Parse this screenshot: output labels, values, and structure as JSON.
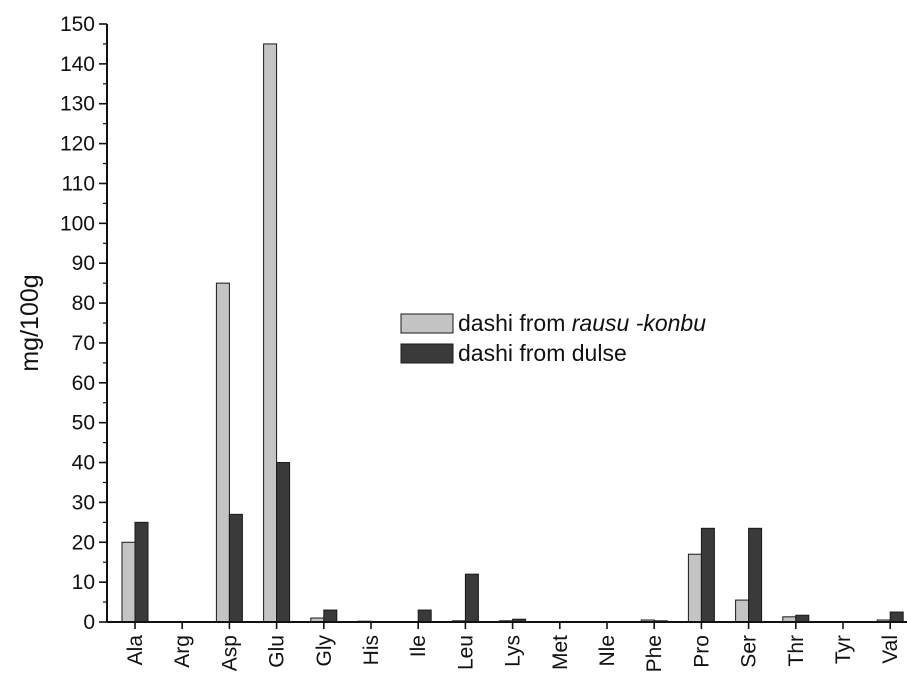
{
  "chart_data": {
    "type": "bar",
    "title": "",
    "xlabel": "",
    "ylabel": "mg/100g",
    "ylim": [
      0,
      150
    ],
    "yticks": [
      0,
      10,
      20,
      30,
      40,
      50,
      60,
      70,
      80,
      90,
      100,
      110,
      120,
      130,
      140,
      150
    ],
    "grid": false,
    "legend_position": "center-right",
    "categories": [
      "Ala",
      "Arg",
      "Asp",
      "Glu",
      "Gly",
      "His",
      "Ile",
      "Leu",
      "Lys",
      "Met",
      "Nle",
      "Phe",
      "Pro",
      "Ser",
      "Thr",
      "Tyr",
      "Val"
    ],
    "series": [
      {
        "name": "dashi from rausu -konbu",
        "name_parts": {
          "prefix": "dashi from ",
          "italic": "rausu -konbu"
        },
        "color": "#c4c4c4",
        "values": [
          20,
          0,
          85,
          145,
          1,
          0.2,
          0,
          0.3,
          0.3,
          0,
          0,
          0.5,
          17,
          5.5,
          1.3,
          0,
          0.5
        ]
      },
      {
        "name": "dashi from dulse",
        "color": "#3a3a3a",
        "values": [
          25,
          0,
          27,
          40,
          3,
          0,
          3,
          12,
          0.7,
          0,
          0,
          0.3,
          23.5,
          23.5,
          1.7,
          0,
          2.5
        ]
      }
    ]
  }
}
